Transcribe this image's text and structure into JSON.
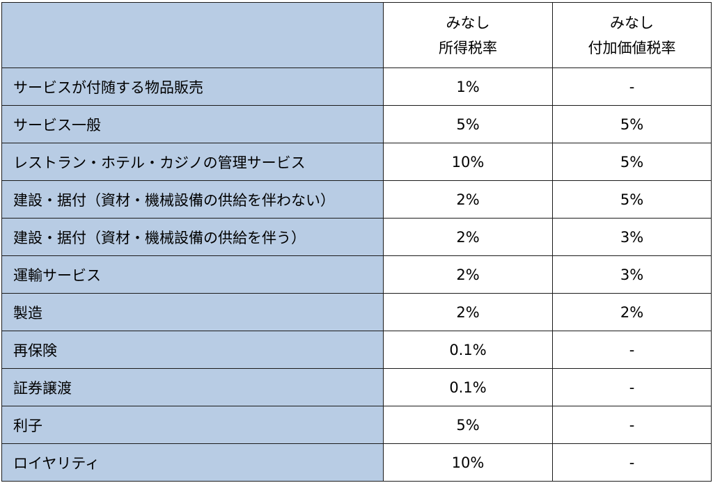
{
  "header": {
    "corner": "",
    "col_income": [
      "みなし",
      "所得税率"
    ],
    "col_vat": [
      "みなし",
      "付加価値税率"
    ]
  },
  "rows": [
    {
      "label": "サービスが付随する物品販売",
      "income_tax": "1%",
      "vat": "-"
    },
    {
      "label": "サービス一般",
      "income_tax": "5%",
      "vat": "5%"
    },
    {
      "label": "レストラン・ホテル・カジノの管理サービス",
      "income_tax": "10%",
      "vat": "5%"
    },
    {
      "label": "建設・据付（資材・機械設備の供給を伴わない）",
      "income_tax": "2%",
      "vat": "5%"
    },
    {
      "label": "建設・据付（資材・機械設備の供給を伴う）",
      "income_tax": "2%",
      "vat": "3%"
    },
    {
      "label": "運輸サービス",
      "income_tax": "2%",
      "vat": "3%"
    },
    {
      "label": "製造",
      "income_tax": "2%",
      "vat": "2%"
    },
    {
      "label": "再保険",
      "income_tax": "0.1%",
      "vat": "-"
    },
    {
      "label": "証券譲渡",
      "income_tax": "0.1%",
      "vat": "-"
    },
    {
      "label": "利子",
      "income_tax": "5%",
      "vat": "-"
    },
    {
      "label": "ロイヤリティ",
      "income_tax": "10%",
      "vat": "-"
    }
  ],
  "colors": {
    "first_column_fill": "#b8cce4",
    "border": "#1a1a1a",
    "background": "#ffffff"
  }
}
